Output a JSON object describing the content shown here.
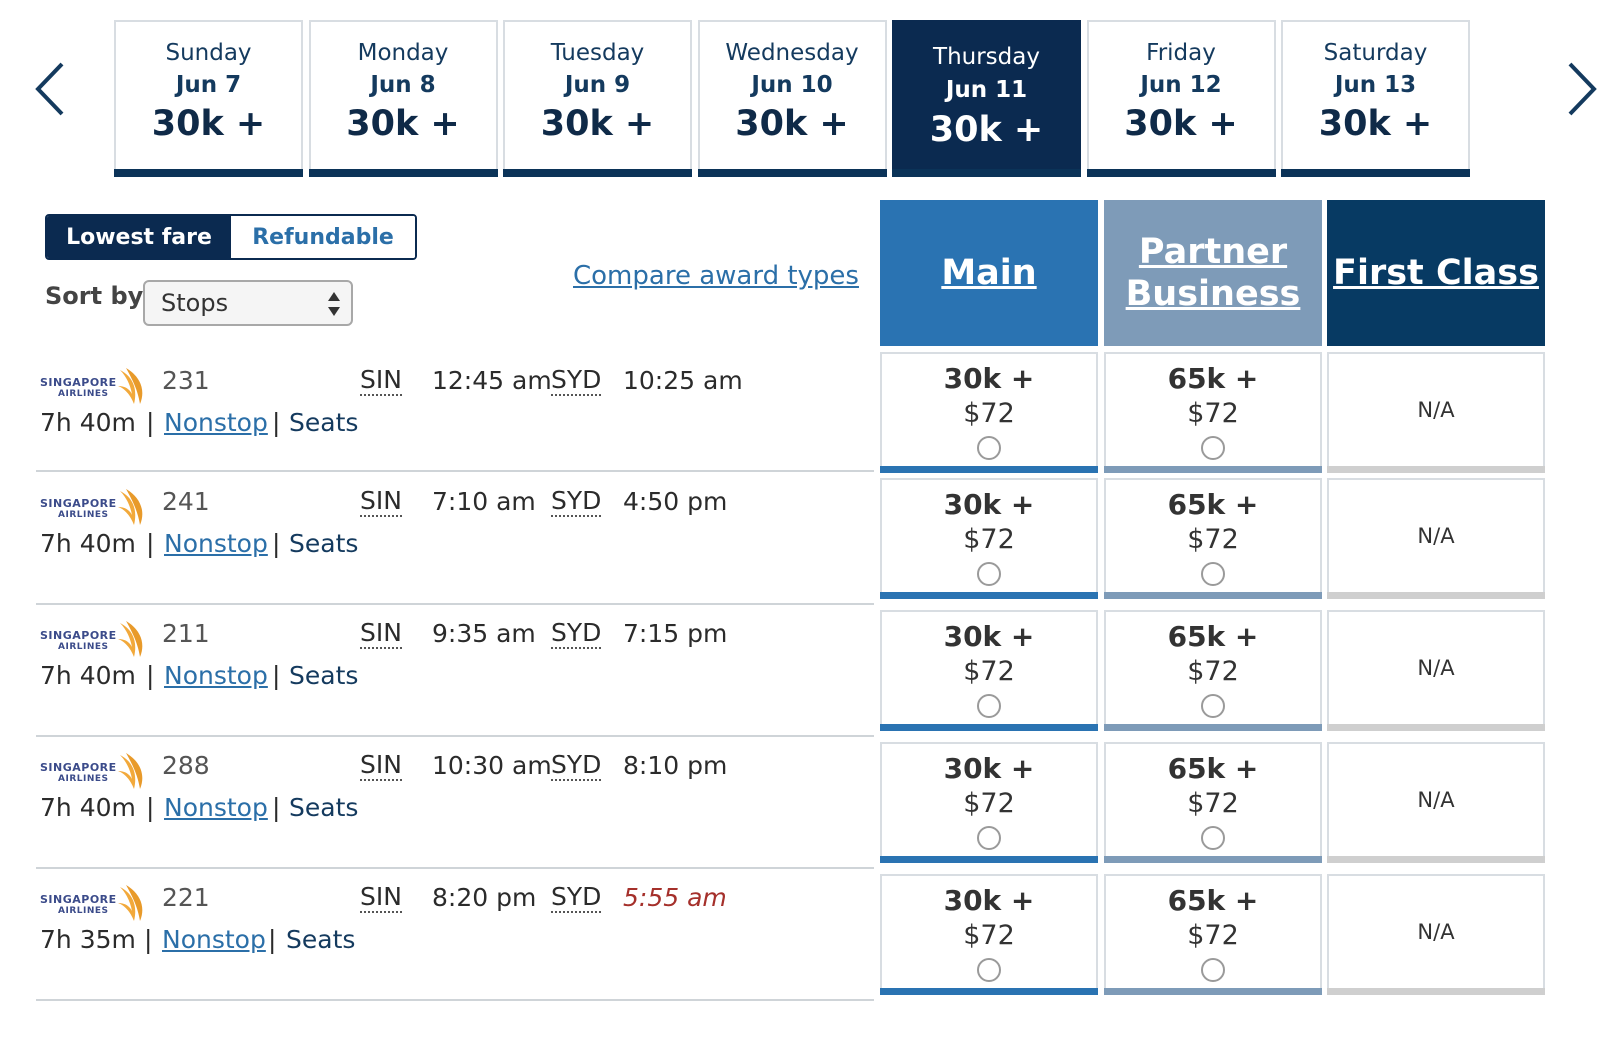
{
  "dates": [
    {
      "day": "Sunday",
      "md": "Jun 7",
      "pts": "30k +"
    },
    {
      "day": "Monday",
      "md": "Jun 8",
      "pts": "30k +"
    },
    {
      "day": "Tuesday",
      "md": "Jun 9",
      "pts": "30k +"
    },
    {
      "day": "Wednesday",
      "md": "Jun 10",
      "pts": "30k +"
    },
    {
      "day": "Thursday",
      "md": "Jun 11",
      "pts": "30k +"
    },
    {
      "day": "Friday",
      "md": "Jun 12",
      "pts": "30k +"
    },
    {
      "day": "Saturday",
      "md": "Jun 13",
      "pts": "30k +"
    }
  ],
  "selected_date_index": 4,
  "toggle": {
    "lowest": "Lowest fare",
    "refundable": "Refundable"
  },
  "sort": {
    "label": "Sort by",
    "value": "Stops"
  },
  "compare_link": "Compare award types",
  "cabins": {
    "main": "Main",
    "partner_line1": "Partner",
    "partner_line2": "Business",
    "first": "First Class"
  },
  "flights": [
    {
      "number": "231",
      "origin": "SIN",
      "dep": "12:45 am",
      "dest": "SYD",
      "arr": "10:25 am",
      "next_day": false,
      "duration": "7h 40m",
      "stops": "Nonstop",
      "seats": "Seats",
      "main": {
        "pts": "30k +",
        "usd": "$72"
      },
      "biz": {
        "pts": "65k +",
        "usd": "$72"
      },
      "first": "N/A"
    },
    {
      "number": "241",
      "origin": "SIN",
      "dep": "7:10 am",
      "dest": "SYD",
      "arr": "4:50 pm",
      "next_day": false,
      "duration": "7h 40m",
      "stops": "Nonstop",
      "seats": "Seats",
      "main": {
        "pts": "30k +",
        "usd": "$72"
      },
      "biz": {
        "pts": "65k +",
        "usd": "$72"
      },
      "first": "N/A"
    },
    {
      "number": "211",
      "origin": "SIN",
      "dep": "9:35 am",
      "dest": "SYD",
      "arr": "7:15 pm",
      "next_day": false,
      "duration": "7h 40m",
      "stops": "Nonstop",
      "seats": "Seats",
      "main": {
        "pts": "30k +",
        "usd": "$72"
      },
      "biz": {
        "pts": "65k +",
        "usd": "$72"
      },
      "first": "N/A"
    },
    {
      "number": "288",
      "origin": "SIN",
      "dep": "10:30 am",
      "dest": "SYD",
      "arr": "8:10 pm",
      "next_day": false,
      "duration": "7h 40m",
      "stops": "Nonstop",
      "seats": "Seats",
      "main": {
        "pts": "30k +",
        "usd": "$72"
      },
      "biz": {
        "pts": "65k +",
        "usd": "$72"
      },
      "first": "N/A"
    },
    {
      "number": "221",
      "origin": "SIN",
      "dep": "8:20 pm",
      "dest": "SYD",
      "arr": "5:55 am",
      "next_day": true,
      "duration": "7h 35m",
      "stops": "Nonstop",
      "seats": "Seats",
      "main": {
        "pts": "30k +",
        "usd": "$72"
      },
      "biz": {
        "pts": "65k +",
        "usd": "$72"
      },
      "first": "N/A"
    }
  ],
  "airline_logo": "singapore-airlines-logo",
  "colors": {
    "navy": "#0b2a50",
    "main": "#2a73b2",
    "partner": "#7e9bb8",
    "first": "#073a63",
    "link": "#2b6fa8",
    "next_day": "#a5302b"
  }
}
